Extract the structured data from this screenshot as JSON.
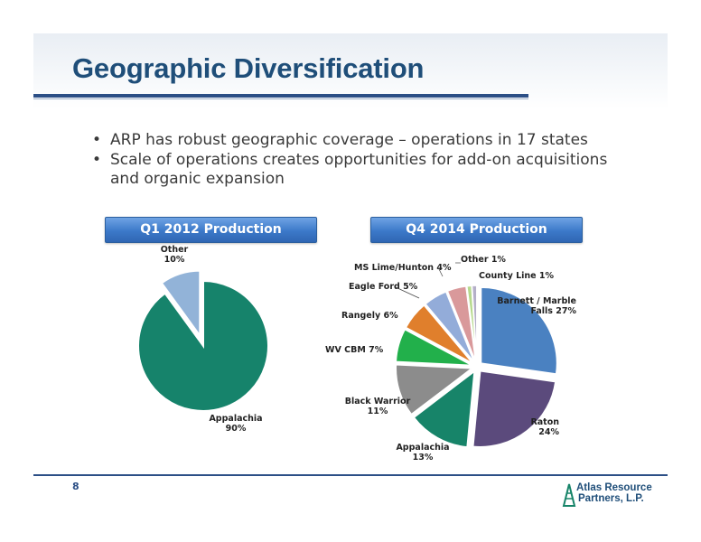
{
  "title": "Geographic Diversification",
  "bullets": [
    {
      "text": "ARP has robust geographic coverage – operations in 17 states"
    },
    {
      "text": "Scale of operations creates opportunities for add-on acquisitions and organic expansion"
    }
  ],
  "page_number": "8",
  "logo": {
    "line1": "Atlas Resource",
    "line2": "Partners, L.P."
  },
  "colors": {
    "title": "#1f4e79",
    "rule": "#2c4f86"
  },
  "chart_data": [
    {
      "type": "pie",
      "title": "Q1 2012 Production",
      "slices": [
        {
          "label": "Appalachia",
          "value": 90,
          "value_text": "90%",
          "color": "#16836b",
          "exploded": false
        },
        {
          "label": "Other",
          "value": 10,
          "value_text": "10%",
          "color": "#92b3d8",
          "exploded": true
        }
      ]
    },
    {
      "type": "pie",
      "title": "Q4 2014 Production",
      "slices": [
        {
          "label": "Barnett / Marble Falls",
          "value": 27,
          "value_text": "27%",
          "color": "#4a81c1"
        },
        {
          "label": "Raton",
          "value": 24,
          "value_text": "24%",
          "color": "#5b4a7c"
        },
        {
          "label": "Appalachia",
          "value": 13,
          "value_text": "13%",
          "color": "#178469"
        },
        {
          "label": "Black Warrior",
          "value": 11,
          "value_text": "11%",
          "color": "#8c8c8c"
        },
        {
          "label": "WV CBM",
          "value": 7,
          "value_text": "7%",
          "color": "#22b04b"
        },
        {
          "label": "Rangely",
          "value": 6,
          "value_text": "6%",
          "color": "#e07f2c"
        },
        {
          "label": "Eagle Ford",
          "value": 5,
          "value_text": "5%",
          "color": "#93acd9"
        },
        {
          "label": "MS Lime/Hunton",
          "value": 4,
          "value_text": "4%",
          "color": "#d9999b"
        },
        {
          "label": "Other",
          "value": 1,
          "value_text": "1%",
          "color": "#b6d98d"
        },
        {
          "label": "County Line",
          "value": 1,
          "value_text": "1%",
          "color": "#b4afc8"
        }
      ]
    }
  ]
}
